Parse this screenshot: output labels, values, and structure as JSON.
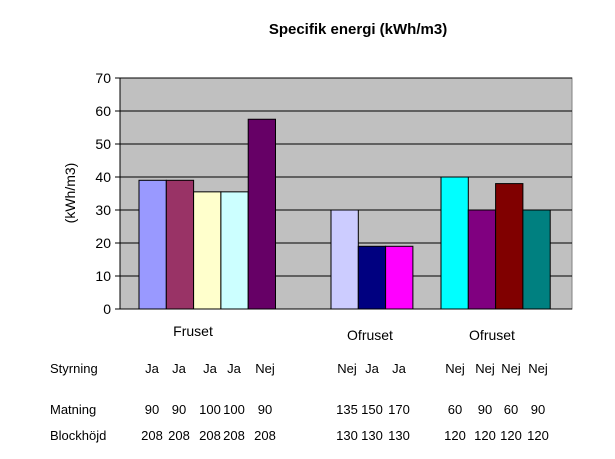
{
  "chart_data": {
    "type": "bar",
    "title": "Specifik energi (kWh/m3)",
    "ylabel": "(kWh/m3)",
    "ylim": [
      0,
      70
    ],
    "yticks": [
      0,
      10,
      20,
      30,
      40,
      50,
      60,
      70
    ],
    "grid": true,
    "plot_background": "#c0c0c0",
    "groups": [
      {
        "label": "Fruset",
        "bars": [
          {
            "value": 39,
            "color": "#9999ff"
          },
          {
            "value": 39,
            "color": "#993366"
          },
          {
            "value": 35.5,
            "color": "#ffffcc"
          },
          {
            "value": 35.5,
            "color": "#ccffff"
          },
          {
            "value": 57.5,
            "color": "#660066"
          }
        ]
      },
      {
        "label": "Ofruset",
        "bars": [
          {
            "value": 30,
            "color": "#ccccff"
          },
          {
            "value": 19,
            "color": "#000080"
          },
          {
            "value": 19,
            "color": "#ff00ff"
          }
        ]
      },
      {
        "label": "Ofruset",
        "bars": [
          {
            "value": 40,
            "color": "#00ffff"
          },
          {
            "value": 30,
            "color": "#800080"
          },
          {
            "value": 38,
            "color": "#800000"
          },
          {
            "value": 30,
            "color": "#008080"
          }
        ]
      }
    ],
    "table": {
      "rows": [
        {
          "label": "Styrning",
          "values": [
            "Ja",
            "Ja",
            "Ja",
            "Ja",
            "Nej",
            "Nej",
            "Ja",
            "Ja",
            "Nej",
            "Nej",
            "Nej",
            "Nej"
          ]
        },
        {
          "label": "Matning",
          "values": [
            "90",
            "90",
            "100",
            "100",
            "90",
            "135",
            "150",
            "170",
            "60",
            "90",
            "60",
            "90"
          ]
        },
        {
          "label": "Blockhöjd",
          "values": [
            "208",
            "208",
            "208",
            "208",
            "208",
            "130",
            "130",
            "130",
            "120",
            "120",
            "120",
            "120"
          ]
        }
      ]
    }
  }
}
